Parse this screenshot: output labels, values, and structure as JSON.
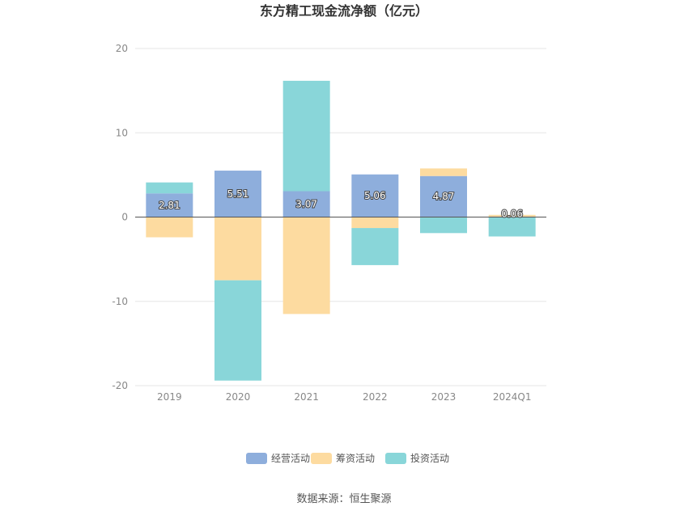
{
  "chart_data": {
    "type": "bar",
    "stacked": true,
    "title": "东方精工现金流净额（亿元）",
    "categories": [
      "2019",
      "2020",
      "2021",
      "2022",
      "2023",
      "2024Q1"
    ],
    "series": [
      {
        "name": "经营活动",
        "color": "#8eaedc",
        "values": [
          2.81,
          5.51,
          3.07,
          5.06,
          4.87,
          0.06
        ],
        "labels": [
          "2.81",
          "5.51",
          "3.07",
          "5.06",
          "4.87",
          "0.06"
        ]
      },
      {
        "name": "筹资活动",
        "color": "#fddba0",
        "values": [
          -2.4,
          -7.5,
          -11.5,
          -1.3,
          0.9,
          0.2
        ]
      },
      {
        "name": "投资活动",
        "color": "#89d6d9",
        "values": [
          1.3,
          -11.9,
          13.1,
          -4.4,
          -1.9,
          -2.3
        ]
      }
    ],
    "ylim": [
      -20,
      20
    ],
    "yticks": [
      "20",
      "10",
      "0",
      "-10",
      "-20"
    ],
    "grid": true,
    "legend_position": "bottom"
  },
  "source": "数据来源：恒生聚源"
}
